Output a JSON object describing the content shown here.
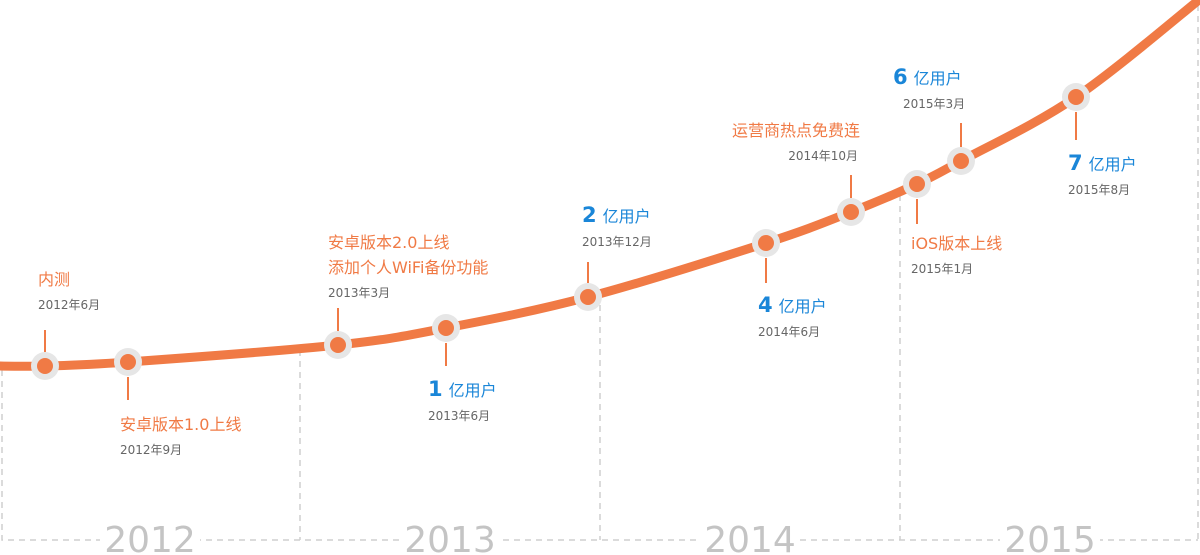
{
  "years": [
    "2012",
    "2013",
    "2014",
    "2015"
  ],
  "events": [
    {
      "title": "内测",
      "date": "2012年6月"
    },
    {
      "title": "安卓版本1.0上线",
      "date": "2012年9月"
    },
    {
      "lines": [
        "安卓版本2.0上线",
        "添加个人WiFi备份功能"
      ],
      "date": "2013年3月"
    },
    {
      "number": "1",
      "title": "亿用户",
      "date": "2013年6月"
    },
    {
      "number": "2",
      "title": "亿用户",
      "date": "2013年12月"
    },
    {
      "number": "4",
      "title": "亿用户",
      "date": "2014年6月"
    },
    {
      "title": "运营商热点免费连",
      "date": "2014年10月"
    },
    {
      "title": "iOS版本上线",
      "date": "2015年1月"
    },
    {
      "number": "6",
      "title": "亿用户",
      "date": "2015年3月"
    },
    {
      "number": "7",
      "title": "亿用户",
      "date": "2015年8月"
    }
  ]
}
